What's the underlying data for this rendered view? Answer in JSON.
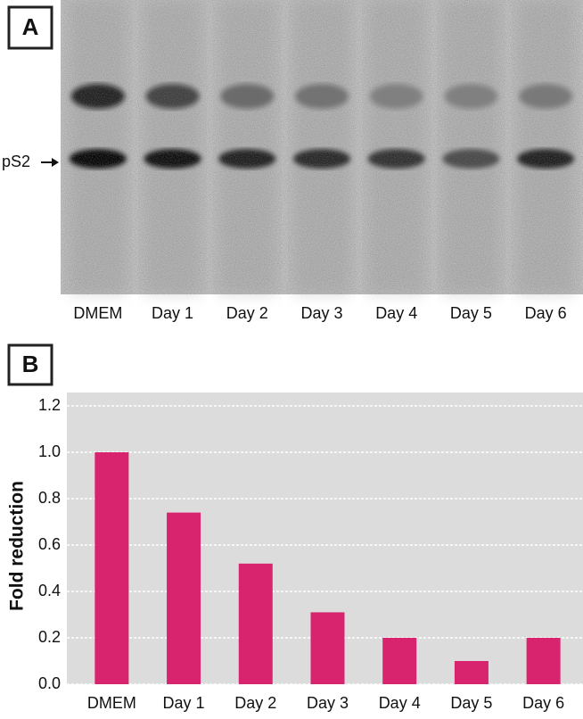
{
  "gel_panel": {
    "panel_label": "A",
    "marker": "pS2",
    "lanes": [
      "DMEM",
      "Day 1",
      "Day 2",
      "Day 3",
      "Day 4",
      "Day 5",
      "Day 6"
    ]
  },
  "chart_data": {
    "type": "bar",
    "panel_label": "B",
    "y_label": "Fold reduction",
    "categories": [
      "DMEM",
      "Day 1",
      "Day 2",
      "Day 3",
      "Day 4",
      "Day 5",
      "Day 6"
    ],
    "values": [
      1.0,
      0.74,
      0.52,
      0.31,
      0.2,
      0.1,
      0.2
    ],
    "color": "#d8246f",
    "ylim": [
      0,
      1.2
    ],
    "yticks": [
      {
        "value": 0,
        "label": "0.0"
      },
      0.2,
      0.4,
      0.6,
      0.8,
      {
        "value": 1,
        "label": "1.0"
      },
      1.2
    ],
    "grid": true
  }
}
